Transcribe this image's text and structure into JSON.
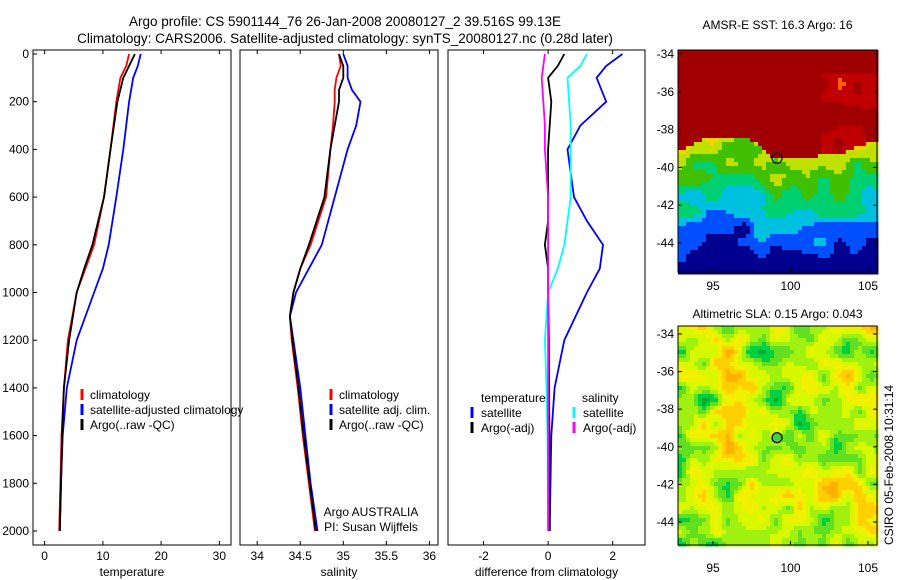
{
  "title_line1": "Argo profile: CS 5901144_76 26-Jan-2008 20080127_2 39.516S 99.13E",
  "title_line2": "Climatology: CARS2006. Satellite-adjusted climatology: synTS_20080127.nc (0.28d later)",
  "side_label": "CSIRO 05-Feb-2008 10:31:14",
  "colors": {
    "climatology": "#ff0000",
    "satellite": "#0000ff",
    "argo": "#000000",
    "sal_satellite": "#00ffff",
    "sal_argo": "#ff00ff"
  },
  "chart_data": [
    {
      "type": "line",
      "xlabel": "temperature",
      "ylabel": "",
      "xlim": [
        -2,
        32
      ],
      "ylim": [
        2050,
        0
      ],
      "xticks": [
        "0",
        "10",
        "20",
        "30"
      ],
      "xtick_values": [
        0,
        10,
        20,
        30
      ],
      "yticks": [
        "0",
        "200",
        "400",
        "600",
        "800",
        "1000",
        "1200",
        "1400",
        "1600",
        "1800",
        "2000"
      ],
      "ytick_values": [
        0,
        200,
        400,
        600,
        800,
        1000,
        1200,
        1400,
        1600,
        1800,
        2000
      ],
      "depth": [
        0,
        50,
        100,
        200,
        400,
        600,
        800,
        900,
        1000,
        1200,
        1400,
        1600,
        1800,
        2000
      ],
      "series": [
        {
          "name": "climatology",
          "color_key": "climatology",
          "values": [
            14.5,
            14,
            13,
            12.3,
            11.3,
            10.2,
            8.5,
            7,
            5.5,
            4,
            3.3,
            2.9,
            2.7,
            2.5
          ]
        },
        {
          "name": "satellite-adjusted climatology",
          "color_key": "satellite",
          "values": [
            16.5,
            16,
            15.2,
            14.5,
            13.5,
            12.3,
            11,
            10,
            8.5,
            5.5,
            3.8,
            3.1,
            2.8,
            2.6
          ]
        },
        {
          "name": "Argo(..raw -QC)",
          "color_key": "argo",
          "values": [
            15.5,
            14.5,
            13.5,
            12.5,
            11.3,
            10.2,
            8.2,
            6.8,
            5.5,
            4.2,
            3.3,
            3.0,
            2.8,
            2.6
          ]
        }
      ],
      "legend": "lower-left"
    },
    {
      "type": "line",
      "xlabel": "salinity",
      "xlim": [
        33.8,
        36.1
      ],
      "ylim": [
        2050,
        0
      ],
      "xticks": [
        "34",
        "34.5",
        "35",
        "35.5",
        "36"
      ],
      "xtick_values": [
        34,
        34.5,
        35,
        35.5,
        36
      ],
      "depth": [
        0,
        50,
        100,
        150,
        200,
        300,
        400,
        600,
        800,
        900,
        1000,
        1100,
        1200,
        1400,
        1600,
        1800,
        2000
      ],
      "series": [
        {
          "name": "climatology",
          "color_key": "climatology",
          "values": [
            34.95,
            34.97,
            34.92,
            34.9,
            34.9,
            34.88,
            34.85,
            34.8,
            34.62,
            34.5,
            34.42,
            34.38,
            34.4,
            34.47,
            34.53,
            34.6,
            34.67
          ]
        },
        {
          "name": "satellite adj. clim.",
          "color_key": "satellite",
          "values": [
            35.0,
            35.05,
            35.05,
            35.1,
            35.2,
            35.15,
            35.05,
            34.9,
            34.75,
            34.6,
            34.45,
            34.38,
            34.42,
            34.5,
            34.56,
            34.62,
            34.7
          ]
        },
        {
          "name": "Argo(..raw -QC)",
          "color_key": "argo",
          "values": [
            34.95,
            35.0,
            35.0,
            34.95,
            34.95,
            34.9,
            34.85,
            34.78,
            34.6,
            34.5,
            34.42,
            34.38,
            34.41,
            34.48,
            34.54,
            34.61,
            34.68
          ]
        }
      ],
      "annotation": [
        "Argo AUSTRALIA",
        "PI: Susan Wijffels"
      ],
      "legend": "lower-left"
    },
    {
      "type": "line",
      "xlabel": "difference from climatology",
      "xlim": [
        -3.1,
        3
      ],
      "ylim": [
        2050,
        0
      ],
      "xticks": [
        "-2",
        "0",
        "2"
      ],
      "xtick_values": [
        -2,
        0,
        2
      ],
      "depth": [
        0,
        50,
        100,
        200,
        300,
        400,
        600,
        700,
        800,
        900,
        1000,
        1200,
        1400,
        1600,
        2000
      ],
      "series": [
        {
          "name": "temperature satellite",
          "color_key": "satellite",
          "values": [
            2.3,
            1.8,
            1.5,
            1.8,
            1.0,
            0.6,
            0.8,
            1.2,
            1.7,
            1.6,
            1.2,
            0.5,
            0.2,
            0.1,
            0.05
          ]
        },
        {
          "name": "temperature Argo(-adj)",
          "color_key": "argo",
          "values": [
            0.5,
            0.3,
            0.0,
            0.1,
            0.05,
            0.0,
            0.0,
            0.0,
            -0.1,
            0.0,
            0.0,
            0.02,
            0.03,
            0.04,
            0.05
          ]
        },
        {
          "name": "salinity satellite",
          "color_key": "sal_satellite",
          "values": [
            1.2,
            1.0,
            0.6,
            0.65,
            0.7,
            0.7,
            0.7,
            0.6,
            0.5,
            0.3,
            0.0,
            -0.1,
            -0.05,
            -0.02,
            0.0
          ]
        },
        {
          "name": "salinity Argo(-adj)",
          "color_key": "sal_argo",
          "values": [
            -0.1,
            -0.15,
            -0.2,
            -0.15,
            -0.1,
            -0.1,
            0.0,
            0.0,
            0.0,
            0.0,
            0.0,
            0.0,
            0.0,
            0.0,
            0.0
          ]
        }
      ],
      "legend_headers": [
        "temperature",
        "salinity"
      ],
      "legend_items": [
        "satellite",
        "Argo(-adj)",
        "satellite",
        "Argo(-adj)"
      ]
    },
    {
      "type": "heatmap",
      "title": "AMSR-E SST: 16.3 Argo: 16",
      "xlim": [
        92.7,
        105.6
      ],
      "ylim": [
        -45.5,
        -33.6
      ],
      "xticks": [
        "95",
        "100",
        "105"
      ],
      "xtick_values": [
        95,
        100,
        105
      ],
      "yticks": [
        "-34",
        "-36",
        "-38",
        "-40",
        "-42",
        "-44"
      ],
      "ytick_values": [
        -34,
        -36,
        -38,
        -40,
        -42,
        -44
      ],
      "marker": {
        "lon": 99.13,
        "lat": -39.516
      },
      "palette": [
        "#00008f",
        "#0050ff",
        "#00c0e0",
        "#00d070",
        "#40c000",
        "#c0e000",
        "#ffd000",
        "#ff6000",
        "#c00000",
        "#a00000"
      ]
    },
    {
      "type": "heatmap",
      "title": "Altimetric SLA: 0.15 Argo: 0.043",
      "xlim": [
        92.7,
        105.6
      ],
      "ylim": [
        -45.5,
        -33.6
      ],
      "xticks": [
        "95",
        "100",
        "105"
      ],
      "xtick_values": [
        95,
        100,
        105
      ],
      "yticks": [
        "-34",
        "-36",
        "-38",
        "-40",
        "-42",
        "-44"
      ],
      "ytick_values": [
        -34,
        -36,
        -38,
        -40,
        -42,
        -44
      ],
      "marker": {
        "lon": 99.13,
        "lat": -39.516
      },
      "palette": [
        "#00b030",
        "#00d040",
        "#60e020",
        "#a0f010",
        "#d8f800",
        "#f0f000",
        "#ffd000",
        "#ffb000"
      ]
    }
  ]
}
